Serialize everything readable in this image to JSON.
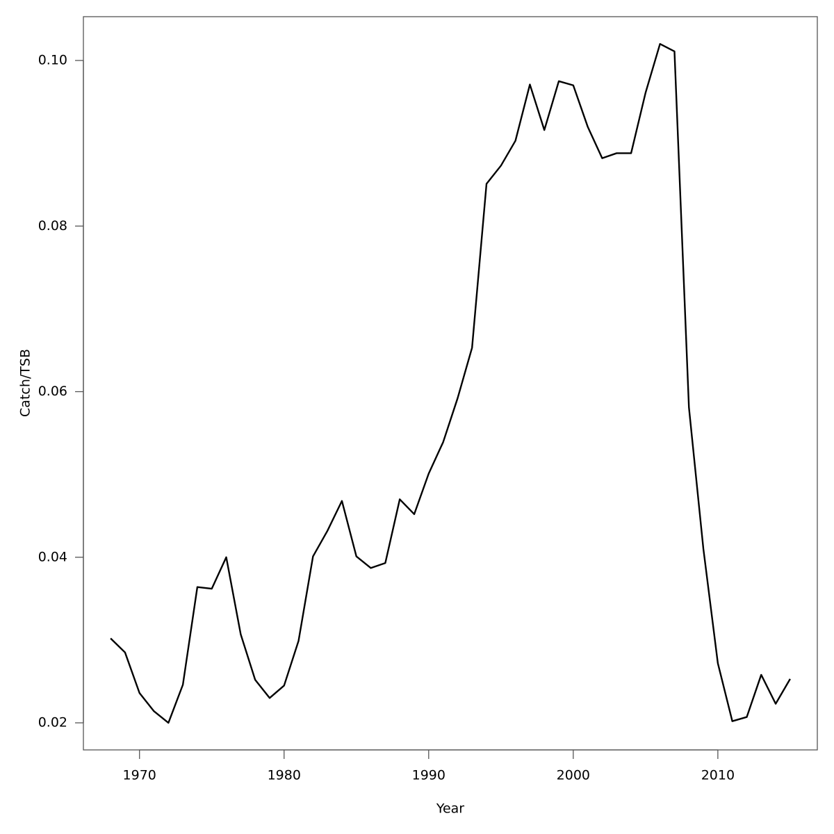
{
  "chart_data": {
    "type": "line",
    "x_label": "Year",
    "y_label": "Catch/TSB",
    "x": [
      1968,
      1969,
      1970,
      1971,
      1972,
      1973,
      1974,
      1975,
      1976,
      1977,
      1978,
      1979,
      1980,
      1981,
      1982,
      1983,
      1984,
      1985,
      1986,
      1987,
      1988,
      1989,
      1990,
      1991,
      1992,
      1993,
      1994,
      1995,
      1996,
      1997,
      1998,
      1999,
      2000,
      2001,
      2002,
      2003,
      2004,
      2005,
      2006,
      2007,
      2008,
      2009,
      2010,
      2011,
      2012,
      2013,
      2014,
      2015
    ],
    "values": [
      0.0302,
      0.0285,
      0.0236,
      0.0214,
      0.02,
      0.0246,
      0.0364,
      0.0362,
      0.04,
      0.0307,
      0.0252,
      0.023,
      0.0245,
      0.0299,
      0.0401,
      0.0432,
      0.0468,
      0.0401,
      0.0387,
      0.0393,
      0.047,
      0.0452,
      0.0501,
      0.0539,
      0.0592,
      0.0653,
      0.0851,
      0.0873,
      0.0903,
      0.0971,
      0.0916,
      0.0975,
      0.097,
      0.092,
      0.0882,
      0.0888,
      0.0888,
      0.0961,
      0.102,
      0.1011,
      0.0581,
      0.041,
      0.0272,
      0.0202,
      0.0207,
      0.0258,
      0.0223,
      0.0253
    ],
    "color": "#000000",
    "xlim": [
      1966.12,
      2016.88
    ],
    "xticks": [
      1970,
      1980,
      1990,
      2000,
      2010
    ],
    "ylim": [
      0.01673,
      0.10529
    ],
    "yticks": [
      0.02,
      0.04,
      0.06,
      0.08,
      {
        "value": 0.1,
        "label": "0.10"
      }
    ]
  }
}
